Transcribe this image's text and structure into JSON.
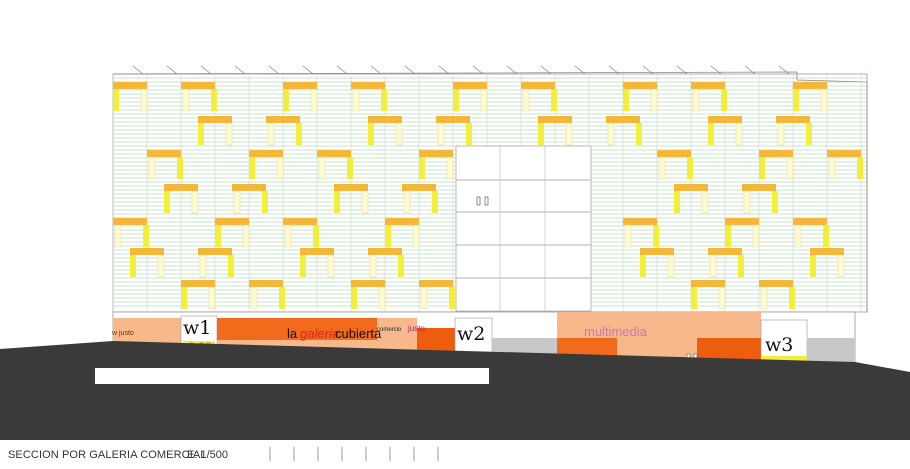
{
  "drawing": {
    "caption": "SECCION POR GALERIA COMERCIAL",
    "scale": "E: 1/500"
  },
  "labels": {
    "w1": "w1",
    "w2": "w2",
    "w3": "w3",
    "galeria_la": "la",
    "galeria_word": "galeria",
    "galeria_cubierta": "cubierta",
    "comercio_justo_left": "w justo",
    "comercio": "comercio",
    "justo": "justo",
    "multimedia": "multimedia"
  },
  "colors": {
    "facade_green": "#8fd08f",
    "balcony_orange": "#f4b73a",
    "balcony_yellow": "#f2ee3a",
    "ground": "#3a3a3a",
    "shop_orange": "#f26a1b",
    "shop_peach": "#f7b98c",
    "shop_deep": "#ee5c0e",
    "label_red": "#e0201a"
  }
}
